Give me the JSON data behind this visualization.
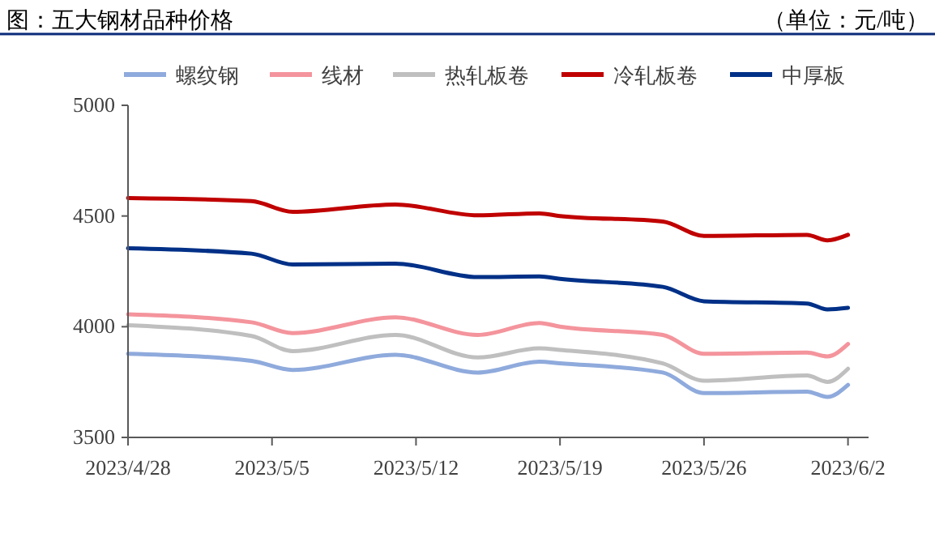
{
  "chart_data": {
    "type": "line",
    "title": "图：五大钢材品种价格",
    "subtitle": "（单位：元/吨）",
    "x": [
      "2023-04-28",
      "2023-05-04",
      "2023-05-06",
      "2023-05-11",
      "2023-05-15",
      "2023-05-18",
      "2023-05-19",
      "2023-05-24",
      "2023-05-26",
      "2023-05-31",
      "2023-06-01",
      "2023-06-02"
    ],
    "series": [
      {
        "name": "螺纹钢",
        "color": "#8faadc",
        "values": [
          3878,
          3846,
          3805,
          3873,
          3793,
          3842,
          3835,
          3793,
          3700,
          3707,
          3683,
          3737
        ]
      },
      {
        "name": "线材",
        "color": "#f4949c",
        "values": [
          4056,
          4020,
          3971,
          4042,
          3963,
          4017,
          4000,
          3963,
          3878,
          3883,
          3866,
          3922
        ]
      },
      {
        "name": "热轧板卷",
        "color": "#bfbfbf",
        "values": [
          4007,
          3958,
          3890,
          3963,
          3861,
          3902,
          3895,
          3834,
          3756,
          3780,
          3751,
          3810
        ]
      },
      {
        "name": "冷轧板卷",
        "color": "#c00000",
        "values": [
          4581,
          4567,
          4519,
          4552,
          4503,
          4512,
          4500,
          4475,
          4410,
          4415,
          4390,
          4415
        ]
      },
      {
        "name": "中厚板",
        "color": "#003087",
        "values": [
          4354,
          4330,
          4281,
          4285,
          4224,
          4227,
          4216,
          4180,
          4115,
          4105,
          4078,
          4085
        ]
      }
    ],
    "xlim": [
      "2023-04-28",
      "2023-06-03"
    ],
    "xticks": [
      {
        "value": "2023-04-28",
        "label": "2023/4/28"
      },
      {
        "value": "2023-05-05",
        "label": "2023/5/5"
      },
      {
        "value": "2023-05-12",
        "label": "2023/5/12"
      },
      {
        "value": "2023-05-19",
        "label": "2023/5/19"
      },
      {
        "value": "2023-05-26",
        "label": "2023/5/26"
      },
      {
        "value": "2023-06-02",
        "label": "2023/6/2"
      }
    ],
    "ylim": [
      3500,
      5000
    ],
    "yticks": [
      3500,
      4000,
      4500,
      5000
    ],
    "grid": false,
    "legend": "top",
    "marker": "none",
    "line_style": "solid"
  }
}
